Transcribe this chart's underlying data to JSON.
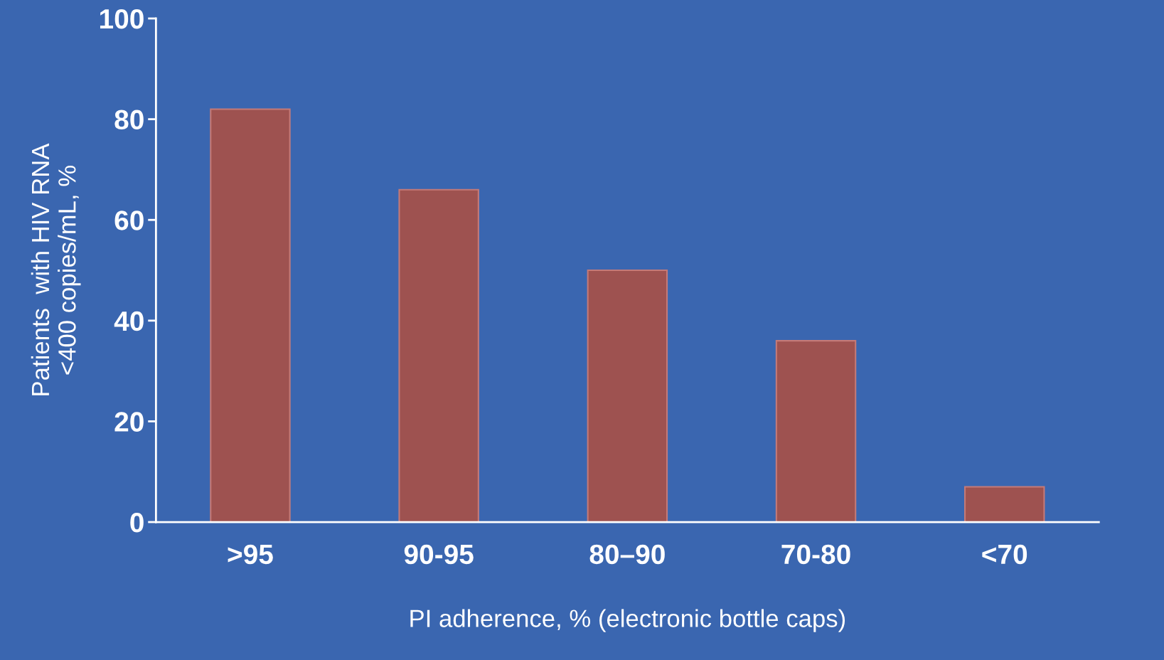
{
  "chart_data": {
    "type": "bar",
    "xlabel": "PI adherence, % (electronic bottle caps)",
    "ylabel": "Patients  with HIV RNA\n<400 copies/mL, %",
    "categories": [
      ">95",
      "90-95",
      "80–90",
      "70-80",
      "<70"
    ],
    "values": [
      82,
      66,
      50,
      36,
      7
    ],
    "color": "#9e5250",
    "ylim": [
      0,
      100
    ],
    "yticks": [
      0,
      20,
      40,
      60,
      80,
      100
    ],
    "grid": false,
    "legend": false
  }
}
